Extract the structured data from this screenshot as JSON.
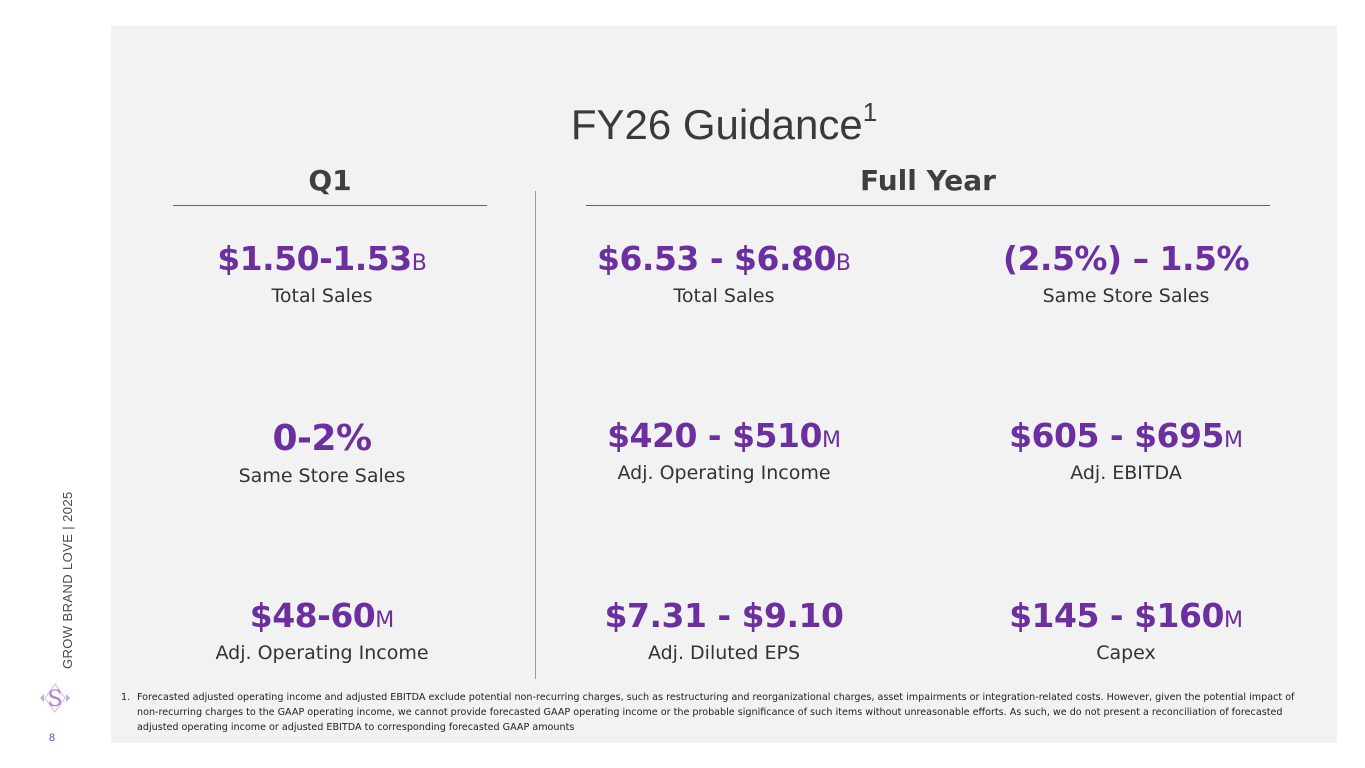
{
  "slide": {
    "title": "FY26 Guidance",
    "title_superscript": "1",
    "page_number": "8",
    "side_text": "GROW BRAND LOVE | 2025"
  },
  "sections": {
    "q1": "Q1",
    "full_year": "Full Year"
  },
  "q1_metrics": [
    {
      "value": "$1.50-1.53",
      "unit": "B",
      "label": "Total Sales"
    },
    {
      "value": "0-2%",
      "unit": "",
      "label": "Same Store Sales"
    },
    {
      "value": "$48-60",
      "unit": "M",
      "label": "Adj. Operating Income"
    }
  ],
  "fy_metrics": [
    {
      "value": "$6.53 - $6.80",
      "unit": "B",
      "label": "Total Sales"
    },
    {
      "value": "(2.5%) – 1.5%",
      "unit": "",
      "label": "Same Store Sales"
    },
    {
      "value": "$420 - $510",
      "unit": "M",
      "label": "Adj. Operating Income"
    },
    {
      "value": "$605 - $695",
      "unit": "M",
      "label": "Adj. EBITDA"
    },
    {
      "value": "$7.31 - $9.10",
      "unit": "",
      "label": "Adj. Diluted EPS"
    },
    {
      "value": "$145 - $160",
      "unit": "M",
      "label": "Capex"
    }
  ],
  "footnote": {
    "number": "1.",
    "text": "Forecasted adjusted operating income and adjusted EBITDA exclude potential non-recurring charges, such as restructuring and reorganizational charges, asset impairments or integration-related costs. However, given the potential impact of non-recurring charges to the GAAP operating income, we cannot provide forecasted GAAP operating income or the probable significance of such items without unreasonable efforts. As such, we do not present a reconciliation of forecasted adjusted operating income or adjusted EBITDA to corresponding forecasted GAAP amounts"
  },
  "colors": {
    "accent_purple": "#6b2fa0",
    "divider_teal": "#4dc2ac",
    "panel_bg": "#f2f2f2"
  },
  "icons": {
    "logo": "s-diamond-logo-icon"
  }
}
